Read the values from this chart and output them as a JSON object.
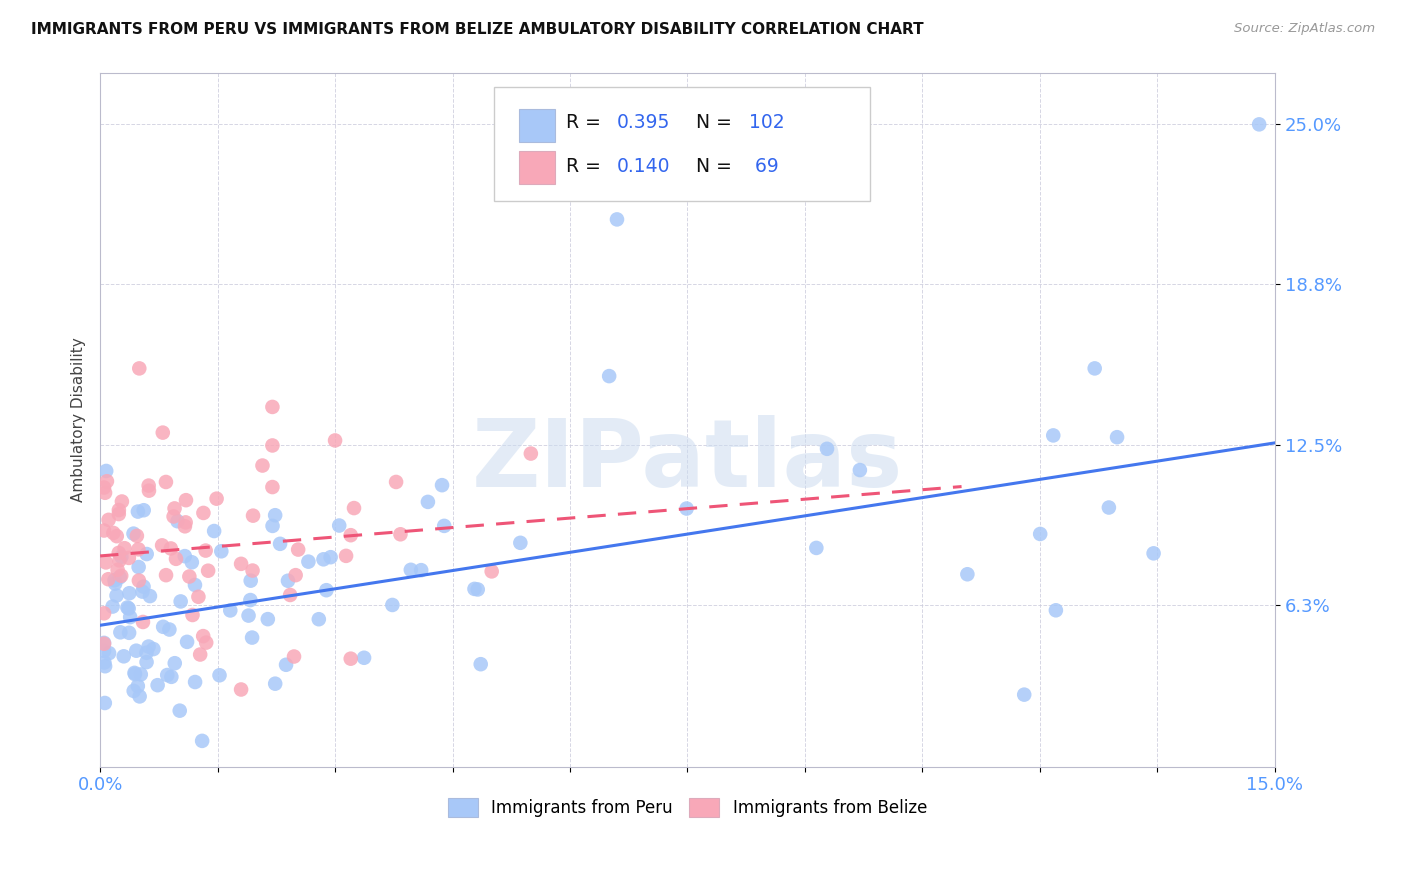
{
  "title": "IMMIGRANTS FROM PERU VS IMMIGRANTS FROM BELIZE AMBULATORY DISABILITY CORRELATION CHART",
  "source": "Source: ZipAtlas.com",
  "ylabel": "Ambulatory Disability",
  "xlim": [
    0.0,
    0.15
  ],
  "ylim": [
    0.0,
    0.27
  ],
  "yticks": [
    0.063,
    0.125,
    0.188,
    0.25
  ],
  "ytick_labels": [
    "6.3%",
    "12.5%",
    "18.8%",
    "25.0%"
  ],
  "peru_R": "0.395",
  "peru_N": "102",
  "belize_R": "0.140",
  "belize_N": "69",
  "peru_color": "#a8c8f8",
  "belize_color": "#f8a8b8",
  "peru_line_color": "#4477ee",
  "belize_line_color": "#ee5577",
  "watermark_text": "ZIPatlas",
  "peru_line_x0": 0.0,
  "peru_line_x1": 0.15,
  "peru_line_y0": 0.055,
  "peru_line_y1": 0.126,
  "belize_line_x0": 0.0,
  "belize_line_x1": 0.11,
  "belize_line_y0": 0.082,
  "belize_line_y1": 0.109
}
